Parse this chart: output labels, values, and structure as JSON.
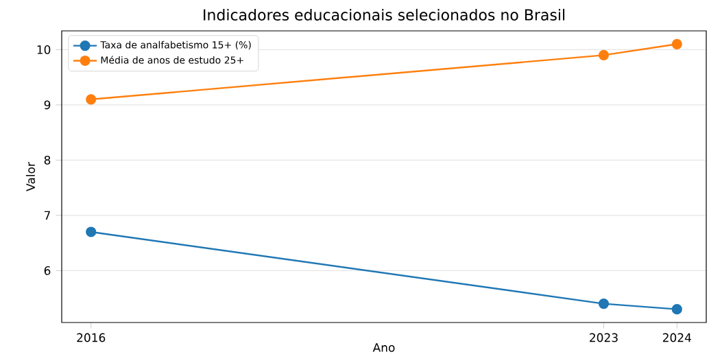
{
  "chart_data": {
    "type": "line",
    "title": "Indicadores educacionais selecionados no Brasil",
    "xlabel": "Ano",
    "ylabel": "Valor",
    "x": [
      2016,
      2023,
      2024
    ],
    "series": [
      {
        "name": "Taxa de analfabetismo 15+ (%)",
        "color": "#1f77b4",
        "values": [
          6.7,
          5.4,
          5.3
        ]
      },
      {
        "name": "Média de anos de estudo 25+",
        "color": "#ff7f0e",
        "values": [
          9.1,
          9.9,
          10.1
        ]
      }
    ],
    "xlim": [
      2015.6,
      2024.4
    ],
    "xticks": [
      2016,
      2023,
      2024
    ],
    "ylim": [
      5.06,
      10.34
    ],
    "yticks": [
      6,
      7,
      8,
      9,
      10
    ],
    "grid": "y",
    "legend": "top left",
    "marker": "circle",
    "line_style": "solid"
  }
}
